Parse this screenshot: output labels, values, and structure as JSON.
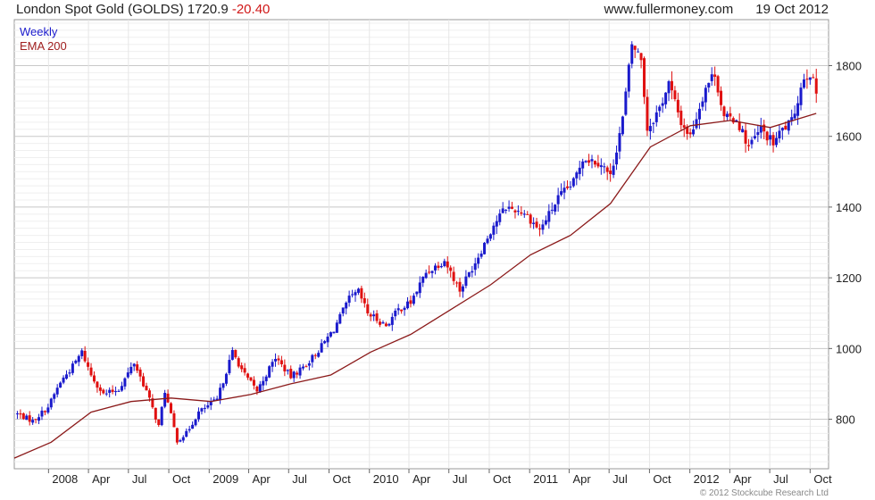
{
  "header": {
    "instrument": "London Spot Gold (GOLDS)",
    "last": "1720.9",
    "change": "-20.40",
    "site": "www.fullermoney.com",
    "date": "19 Oct 2012"
  },
  "footer": {
    "copyright": "© 2012 Stockcube Research Ltd"
  },
  "colors": {
    "up": "#1a1acc",
    "down": "#e01010",
    "ema": "#8b1a1a",
    "grid": "#d8d8d8"
  },
  "chart_data": {
    "type": "candlestick",
    "legend": [
      "Weekly",
      "EMA 200"
    ],
    "legend_placement": "top-left",
    "ylim": [
      660,
      1930
    ],
    "yticks": [
      800,
      1000,
      1200,
      1400,
      1600,
      1800
    ],
    "ytick_labels": [
      "800",
      "1000",
      "1200",
      "1400",
      "1600",
      "1800"
    ],
    "y_axis_side": "right",
    "grid": true,
    "xlim": [
      "2007-10-15",
      "2012-11-12"
    ],
    "xticks": [
      {
        "date": "2008-01-01",
        "label": "2008"
      },
      {
        "date": "2008-04-01",
        "label": "Apr"
      },
      {
        "date": "2008-07-01",
        "label": "Jul"
      },
      {
        "date": "2008-10-01",
        "label": "Oct"
      },
      {
        "date": "2009-01-01",
        "label": "2009"
      },
      {
        "date": "2009-04-01",
        "label": "Apr"
      },
      {
        "date": "2009-07-01",
        "label": "Jul"
      },
      {
        "date": "2009-10-01",
        "label": "Oct"
      },
      {
        "date": "2010-01-01",
        "label": "2010"
      },
      {
        "date": "2010-04-01",
        "label": "Apr"
      },
      {
        "date": "2010-07-01",
        "label": "Jul"
      },
      {
        "date": "2010-10-01",
        "label": "Oct"
      },
      {
        "date": "2011-01-01",
        "label": "2011"
      },
      {
        "date": "2011-04-01",
        "label": "Apr"
      },
      {
        "date": "2011-07-01",
        "label": "Jul"
      },
      {
        "date": "2011-10-01",
        "label": "Oct"
      },
      {
        "date": "2012-01-01",
        "label": "2012"
      },
      {
        "date": "2012-04-01",
        "label": "Apr"
      },
      {
        "date": "2012-07-01",
        "label": "Jul"
      },
      {
        "date": "2012-10-01",
        "label": "Oct"
      }
    ],
    "close_path": [
      [
        "2007-10-22",
        815
      ],
      [
        "2007-11-26",
        795
      ],
      [
        "2007-12-31",
        835
      ],
      [
        "2008-01-28",
        905
      ],
      [
        "2008-02-25",
        950
      ],
      [
        "2008-03-17",
        990
      ],
      [
        "2008-04-07",
        925
      ],
      [
        "2008-05-05",
        870
      ],
      [
        "2008-06-09",
        885
      ],
      [
        "2008-07-14",
        960
      ],
      [
        "2008-08-11",
        880
      ],
      [
        "2008-09-08",
        780
      ],
      [
        "2008-09-22",
        880
      ],
      [
        "2008-10-20",
        740
      ],
      [
        "2008-11-10",
        760
      ],
      [
        "2008-12-08",
        820
      ],
      [
        "2009-01-19",
        855
      ],
      [
        "2009-02-23",
        990
      ],
      [
        "2009-03-23",
        925
      ],
      [
        "2009-04-20",
        880
      ],
      [
        "2009-06-01",
        975
      ],
      [
        "2009-07-06",
        920
      ],
      [
        "2009-08-10",
        955
      ],
      [
        "2009-09-07",
        995
      ],
      [
        "2009-10-12",
        1055
      ],
      [
        "2009-11-16",
        1140
      ],
      [
        "2009-12-07",
        1160
      ],
      [
        "2009-12-28",
        1100
      ],
      [
        "2010-02-08",
        1065
      ],
      [
        "2010-03-08",
        1110
      ],
      [
        "2010-04-05",
        1130
      ],
      [
        "2010-05-10",
        1215
      ],
      [
        "2010-06-21",
        1250
      ],
      [
        "2010-07-26",
        1165
      ],
      [
        "2010-08-30",
        1245
      ],
      [
        "2010-10-11",
        1350
      ],
      [
        "2010-11-08",
        1400
      ],
      [
        "2010-12-20",
        1385
      ],
      [
        "2011-01-24",
        1335
      ],
      [
        "2011-03-07",
        1425
      ],
      [
        "2011-04-11",
        1470
      ],
      [
        "2011-05-02",
        1540
      ],
      [
        "2011-06-13",
        1525
      ],
      [
        "2011-07-04",
        1485
      ],
      [
        "2011-08-01",
        1650
      ],
      [
        "2011-08-22",
        1860
      ],
      [
        "2011-09-12",
        1820
      ],
      [
        "2011-09-26",
        1620
      ],
      [
        "2011-10-24",
        1680
      ],
      [
        "2011-11-14",
        1750
      ],
      [
        "2011-12-12",
        1640
      ],
      [
        "2012-01-02",
        1600
      ],
      [
        "2012-02-06",
        1740
      ],
      [
        "2012-02-27",
        1780
      ],
      [
        "2012-03-19",
        1650
      ],
      [
        "2012-04-16",
        1650
      ],
      [
        "2012-05-14",
        1570
      ],
      [
        "2012-06-11",
        1620
      ],
      [
        "2012-07-09",
        1580
      ],
      [
        "2012-07-30",
        1620
      ],
      [
        "2012-08-20",
        1640
      ],
      [
        "2012-09-17",
        1770
      ],
      [
        "2012-10-01",
        1780
      ],
      [
        "2012-10-15",
        1720.9
      ]
    ],
    "ema_200": [
      [
        "2007-10-15",
        690
      ],
      [
        "2008-01-07",
        735
      ],
      [
        "2008-04-07",
        820
      ],
      [
        "2008-07-07",
        850
      ],
      [
        "2008-10-06",
        860
      ],
      [
        "2009-01-05",
        850
      ],
      [
        "2009-04-06",
        870
      ],
      [
        "2009-07-06",
        900
      ],
      [
        "2009-10-05",
        925
      ],
      [
        "2010-01-04",
        990
      ],
      [
        "2010-04-05",
        1040
      ],
      [
        "2010-07-05",
        1110
      ],
      [
        "2010-10-04",
        1180
      ],
      [
        "2011-01-03",
        1265
      ],
      [
        "2011-04-04",
        1320
      ],
      [
        "2011-07-04",
        1410
      ],
      [
        "2011-10-03",
        1570
      ],
      [
        "2012-01-02",
        1630
      ],
      [
        "2012-04-02",
        1645
      ],
      [
        "2012-07-02",
        1625
      ],
      [
        "2012-10-15",
        1665
      ]
    ]
  }
}
